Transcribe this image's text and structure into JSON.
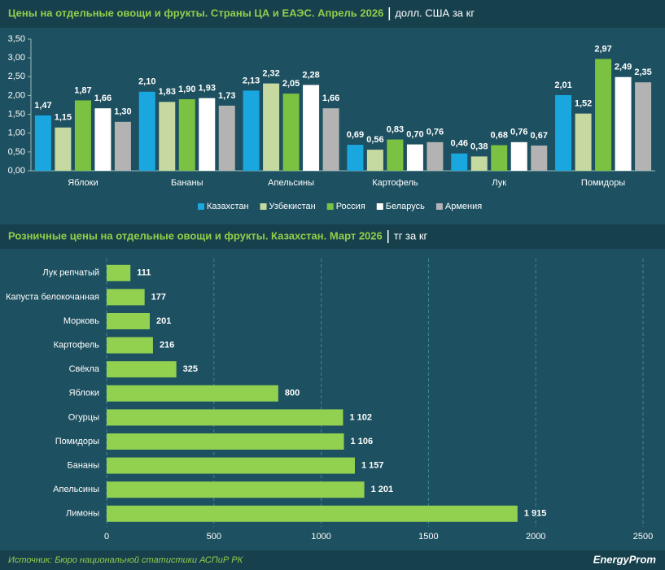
{
  "chart_data": [
    {
      "type": "grouped-bar",
      "title": "Цены на отдельные овощи и фрукты. Страны ЦА и ЕАЭС. Апрель 2026",
      "subtitle": "долл. США за кг",
      "categories": [
        "Яблоки",
        "Бананы",
        "Апельсины",
        "Картофель",
        "Лук",
        "Помидоры"
      ],
      "series": [
        {
          "name": "Казахстан",
          "color": "#1aa7e0",
          "values": [
            1.47,
            2.1,
            2.13,
            0.69,
            0.46,
            2.01
          ],
          "value_labels": [
            "1,47",
            "2,10",
            "2,13",
            "0,69",
            "0,46",
            "2,01"
          ]
        },
        {
          "name": "Узбекистан",
          "color": "#c5d9a0",
          "values": [
            1.15,
            1.83,
            2.32,
            0.56,
            0.38,
            1.52
          ],
          "value_labels": [
            "1,15",
            "1,83",
            "2,32",
            "0,56",
            "0,38",
            "1,52"
          ]
        },
        {
          "name": "Россия",
          "color": "#7cc242",
          "values": [
            1.87,
            1.9,
            2.05,
            0.83,
            0.68,
            2.97
          ],
          "value_labels": [
            "1,87",
            "1,90",
            "2,05",
            "0,83",
            "0,68",
            "2,97"
          ]
        },
        {
          "name": "Беларусь",
          "color": "#ffffff",
          "values": [
            1.66,
            1.93,
            2.28,
            0.7,
            0.76,
            2.49
          ],
          "value_labels": [
            "1,66",
            "1,93",
            "2,28",
            "0,70",
            "0,76",
            "2,49"
          ]
        },
        {
          "name": "Армения",
          "color": "#b3b3b3",
          "values": [
            1.3,
            1.73,
            1.66,
            0.76,
            0.67,
            2.35
          ],
          "value_labels": [
            "1,30",
            "1,73",
            "1,66",
            "0,76",
            "0,67",
            "2,35"
          ]
        }
      ],
      "ylim": [
        0,
        3.5
      ],
      "yticks": [
        {
          "value": 0,
          "label": "0,00"
        },
        {
          "value": 0.5,
          "label": "0,50"
        },
        {
          "value": 1,
          "label": "1,00"
        },
        {
          "value": 1.5,
          "label": "1,50"
        },
        {
          "value": 2,
          "label": "2,00"
        },
        {
          "value": 2.5,
          "label": "2,50"
        },
        {
          "value": 3,
          "label": "3,00"
        },
        {
          "value": 3.5,
          "label": "3,50"
        }
      ],
      "legend": "bottom",
      "grid": false
    },
    {
      "type": "hbar",
      "title": "Розничные цены на отдельные овощи и фрукты. Казахстан. Март 2026",
      "subtitle": "тг за кг",
      "categories": [
        "Лук репчатый",
        "Капуста белокочанная",
        "Морковь",
        "Картофель",
        "Свёкла",
        "Яблоки",
        "Огурцы",
        "Помидоры",
        "Бананы",
        "Апельсины",
        "Лимоны"
      ],
      "values": [
        111,
        177,
        201,
        216,
        325,
        800,
        1102,
        1106,
        1157,
        1201,
        1915
      ],
      "value_labels": [
        "111",
        "177",
        "201",
        "216",
        "325",
        "800",
        "1 102",
        "1 106",
        "1 157",
        "1 201",
        "1 915"
      ],
      "color": "#92d050",
      "xlim": [
        0,
        2500
      ],
      "xticks": [
        0,
        500,
        1000,
        1500,
        2000,
        2500
      ],
      "grid": true
    }
  ],
  "footer": {
    "source": "Источник: Бюро национальной статистики АСПиР РК",
    "logo": "EnergyProm"
  }
}
